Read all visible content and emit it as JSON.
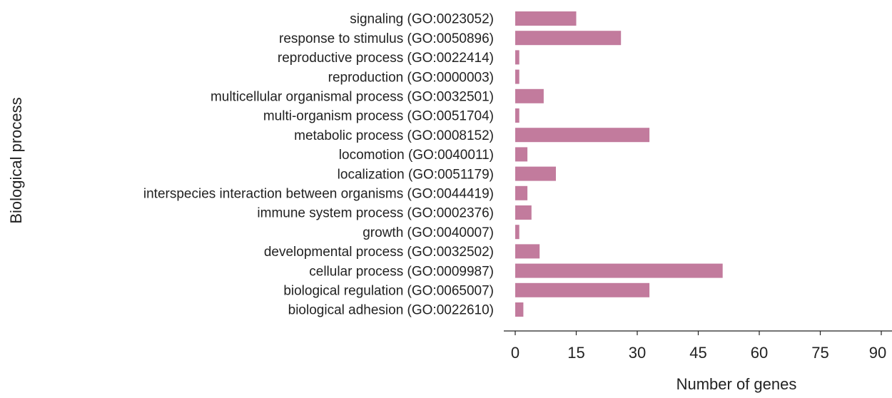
{
  "chart_data": {
    "type": "bar",
    "orientation": "horizontal",
    "xlabel": "Number of genes",
    "ylabel": "Biological process",
    "xlim": [
      0,
      90
    ],
    "xticks": [
      0,
      15,
      30,
      45,
      60,
      75,
      90
    ],
    "grid": false,
    "bar_color": "#c27b9d",
    "categories": [
      "signaling (GO:0023052)",
      "response to stimulus (GO:0050896)",
      "reproductive process (GO:0022414)",
      "reproduction (GO:0000003)",
      "multicellular organismal process (GO:0032501)",
      "multi-organism process (GO:0051704)",
      "metabolic process (GO:0008152)",
      "locomotion (GO:0040011)",
      "localization (GO:0051179)",
      "interspecies interaction between organisms (GO:0044419)",
      "immune system process (GO:0002376)",
      "growth (GO:0040007)",
      "developmental process (GO:0032502)",
      "cellular process (GO:0009987)",
      "biological regulation (GO:0065007)",
      "biological adhesion (GO:0022610)"
    ],
    "values": [
      15,
      26,
      1,
      1,
      7,
      1,
      33,
      3,
      10,
      3,
      4,
      1,
      6,
      51,
      33,
      2
    ]
  }
}
